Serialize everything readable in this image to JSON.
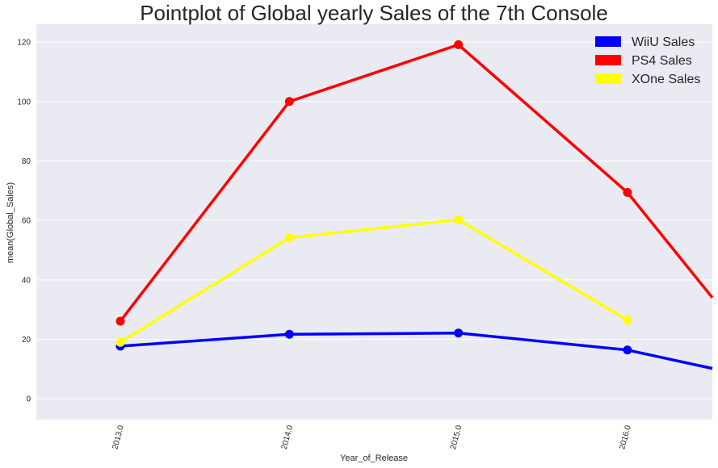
{
  "chart_data": {
    "type": "line",
    "title": "Pointplot of Global yearly Sales of the 7th Console",
    "xlabel": "Year_of_Release",
    "ylabel": "mean(Global_Sales)",
    "categories": [
      "2013.0",
      "2014.0",
      "2015.0",
      "2016.0"
    ],
    "ylim": [
      -7,
      126
    ],
    "yticks": [
      0,
      20,
      40,
      60,
      80,
      100,
      120
    ],
    "grid": true,
    "legend_position": "top-right",
    "series": [
      {
        "name": "WiiU Sales",
        "color": "#0000ff",
        "values": [
          17.7,
          21.7,
          22.1,
          16.4
        ],
        "trailing_value": 10.2
      },
      {
        "name": "PS4 Sales",
        "color": "#ff0000",
        "values": [
          26.1,
          100.0,
          119.1,
          69.4
        ],
        "trailing_value": 34.0
      },
      {
        "name": "XOne Sales",
        "color": "#ffff00",
        "values": [
          19.0,
          54.2,
          60.2,
          26.5
        ],
        "trailing_value": null
      }
    ]
  }
}
